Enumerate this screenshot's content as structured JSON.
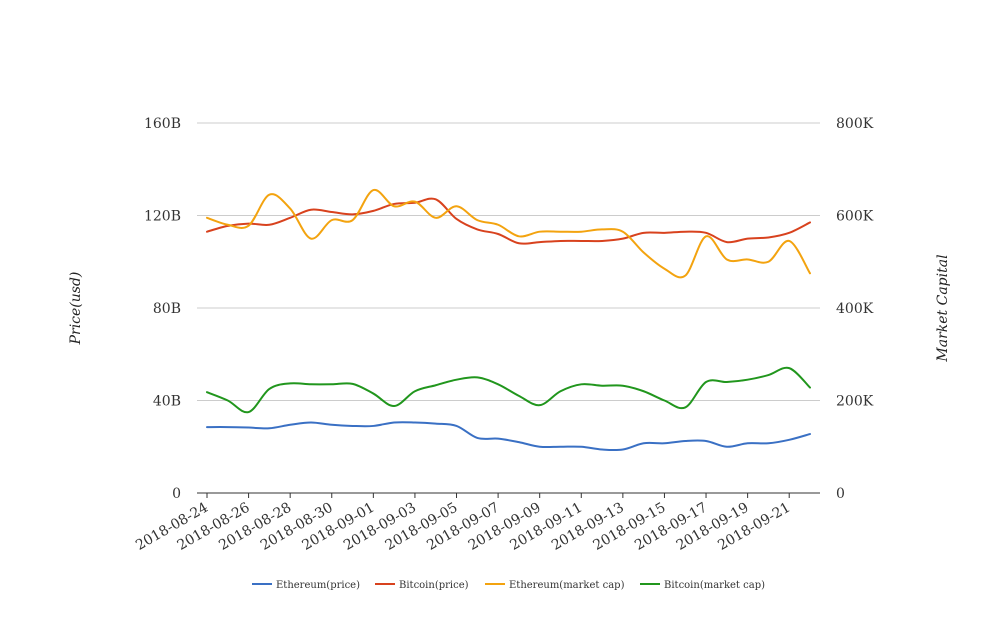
{
  "chart_data": {
    "type": "line",
    "x": [
      "2018-08-24",
      "2018-08-25",
      "2018-08-26",
      "2018-08-27",
      "2018-08-28",
      "2018-08-29",
      "2018-08-30",
      "2018-08-31",
      "2018-09-01",
      "2018-09-02",
      "2018-09-03",
      "2018-09-04",
      "2018-09-05",
      "2018-09-06",
      "2018-09-07",
      "2018-09-08",
      "2018-09-09",
      "2018-09-10",
      "2018-09-11",
      "2018-09-12",
      "2018-09-13",
      "2018-09-14",
      "2018-09-15",
      "2018-09-16",
      "2018-09-17",
      "2018-09-18",
      "2018-09-19",
      "2018-09-20",
      "2018-09-21",
      "2018-09-22"
    ],
    "x_tick_labels": [
      "2018-08-24",
      "2018-08-26",
      "2018-08-28",
      "2018-08-30",
      "2018-09-01",
      "2018-09-03",
      "2018-09-05",
      "2018-09-07",
      "2018-09-09",
      "2018-09-11",
      "2018-09-13",
      "2018-09-15",
      "2018-09-17",
      "2018-09-19",
      "2018-09-21"
    ],
    "y_left": {
      "label": "Price(usd)",
      "ylim": [
        0,
        160
      ],
      "ticks": [
        0,
        40,
        80,
        120,
        160
      ],
      "tick_labels": [
        "0",
        "40B",
        "80B",
        "120B",
        "160B"
      ]
    },
    "y_right": {
      "label": "Market Capital",
      "ylim": [
        0,
        800
      ],
      "ticks": [
        0,
        200,
        400,
        600,
        800
      ],
      "tick_labels": [
        "0",
        "200K",
        "400K",
        "600K",
        "800K"
      ]
    },
    "grid": true,
    "legend_position": "bottom",
    "series": [
      {
        "name": "Ethereum(price)",
        "color": "#3a70c4",
        "axis": "left",
        "values": [
          28.5,
          28.5,
          28.3,
          28.0,
          29.5,
          30.5,
          29.5,
          29.0,
          29.0,
          30.5,
          30.5,
          30.0,
          29.0,
          23.8,
          23.5,
          22.0,
          20.0,
          20.0,
          20.0,
          18.8,
          18.8,
          21.5,
          21.5,
          22.5,
          22.5,
          20.0,
          21.5,
          21.5,
          23.0,
          25.5
        ]
      },
      {
        "name": "Bitcoin(price)",
        "color": "#d8421e",
        "axis": "left",
        "values": [
          113,
          115.5,
          116.5,
          116,
          119,
          122.5,
          121.5,
          120.5,
          122,
          125,
          125.5,
          127,
          118.5,
          114,
          112,
          108,
          108.5,
          109,
          109,
          109,
          110,
          112.5,
          112.5,
          113,
          112.5,
          108.5,
          110,
          110.5,
          112.5,
          117
        ]
      },
      {
        "name": "Ethereum(market cap)",
        "color": "#f3a30f",
        "axis": "right",
        "values": [
          595,
          580,
          578,
          645,
          615,
          550,
          590,
          590,
          655,
          620,
          630,
          595,
          620,
          590,
          580,
          555,
          565,
          565,
          565,
          570,
          565,
          520,
          485,
          470,
          555,
          505,
          505,
          500,
          545,
          475
        ]
      },
      {
        "name": "Bitcoin(market cap)",
        "color": "#21961d",
        "axis": "right",
        "values": [
          218,
          200,
          175,
          225,
          237,
          235,
          235,
          236,
          215,
          188,
          220,
          233,
          245,
          250,
          235,
          210,
          190,
          220,
          235,
          232,
          232,
          220,
          200,
          185,
          240,
          240,
          245,
          255,
          270,
          228
        ]
      }
    ]
  }
}
